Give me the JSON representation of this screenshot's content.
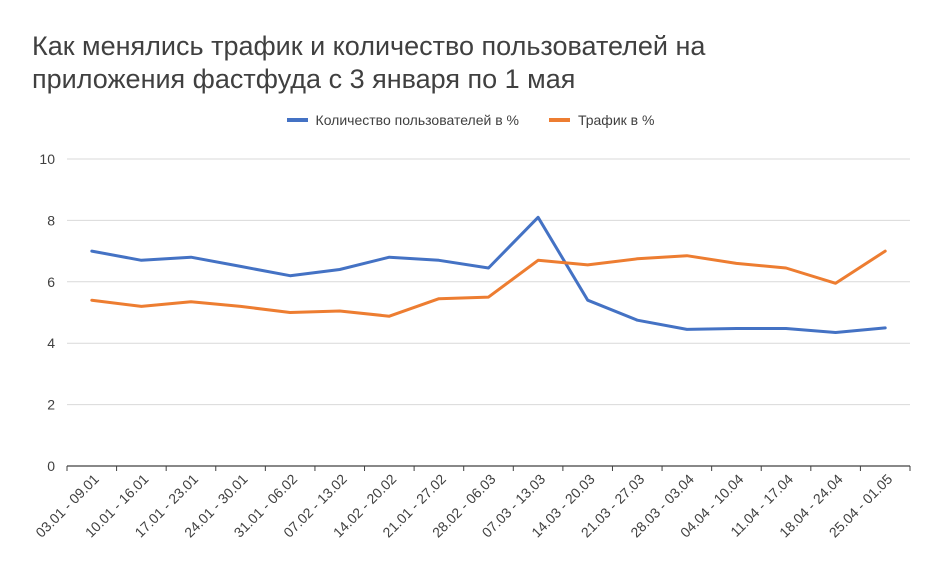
{
  "chart_data": {
    "type": "line",
    "title_lines": [
      "Как менялись трафик и количество пользователей на",
      "приложения фастфуда с 3 января по 1 мая"
    ],
    "categories": [
      "03.01 - 09.01",
      "10.01 - 16.01",
      "17.01 - 23.01",
      "24.01 - 30.01",
      "31.01 - 06.02",
      "07.02 - 13.02",
      "14.02 - 20.02",
      "21.01 - 27.02",
      "28.02 - 06.03",
      "07.03 - 13.03",
      "14.03 - 20.03",
      "21.03 - 27.03",
      "28.03 - 03.04",
      "04.04 - 10.04",
      "11.04 - 17.04",
      "18.04 - 24.04",
      "25.04 - 01.05"
    ],
    "series": [
      {
        "name": "Количество пользователей в %",
        "color": "#4472C4",
        "values": [
          7.0,
          6.7,
          6.8,
          6.5,
          6.2,
          6.4,
          6.8,
          6.7,
          6.45,
          8.1,
          5.4,
          4.75,
          4.45,
          4.48,
          4.48,
          4.35,
          4.5
        ]
      },
      {
        "name": "Трафик в %",
        "color": "#ED7D31",
        "values": [
          5.4,
          5.2,
          5.35,
          5.2,
          5.0,
          5.05,
          4.88,
          5.45,
          5.5,
          6.7,
          6.55,
          6.75,
          6.85,
          6.6,
          6.45,
          5.95,
          7.0
        ]
      }
    ],
    "ylim": [
      0,
      10
    ],
    "yticks": [
      "0",
      "2",
      "4",
      "6",
      "8",
      "10"
    ],
    "grid": true,
    "legend_position": "top",
    "xlabel": "",
    "ylabel": ""
  }
}
